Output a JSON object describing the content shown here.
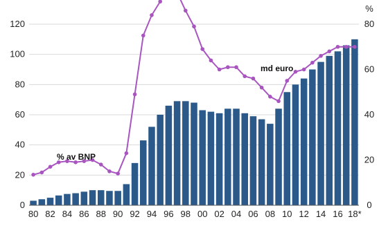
{
  "chart_data": {
    "type": "bar+line",
    "categories": [
      "80",
      "81",
      "82",
      "83",
      "84",
      "85",
      "86",
      "87",
      "88",
      "89",
      "90",
      "91",
      "92",
      "93",
      "94",
      "95",
      "96",
      "97",
      "98",
      "99",
      "00",
      "01",
      "02",
      "03",
      "04",
      "05",
      "06",
      "07",
      "08",
      "09",
      "10",
      "11",
      "12",
      "13",
      "14",
      "15",
      "16",
      "17",
      "18*"
    ],
    "x_tick_labels": [
      "80",
      "82",
      "84",
      "86",
      "88",
      "90",
      "92",
      "94",
      "96",
      "98",
      "00",
      "02",
      "04",
      "06",
      "08",
      "10",
      "12",
      "14",
      "16",
      "18*"
    ],
    "series": [
      {
        "name": "md euro",
        "kind": "bar",
        "axis": "left",
        "color": "#2b5a8a",
        "values": [
          3,
          4,
          5,
          6.5,
          7.5,
          8,
          9,
          10,
          10,
          9.5,
          9.5,
          14,
          28,
          43,
          52,
          60,
          66,
          69,
          69,
          68,
          63,
          62,
          61,
          64,
          64,
          61,
          59,
          57,
          54,
          64,
          75,
          80,
          84,
          90,
          95,
          99,
          102,
          106,
          110
        ]
      },
      {
        "name": "% av BNP",
        "kind": "line",
        "axis": "right",
        "color": "#a855c0",
        "values": [
          13.5,
          14.5,
          17,
          19,
          19.5,
          19,
          19.5,
          20,
          18,
          15,
          14,
          23,
          49,
          75,
          84,
          90,
          97,
          94,
          86,
          79,
          69,
          64,
          60,
          61,
          61,
          57,
          56,
          52,
          48,
          46,
          55,
          59,
          60,
          63,
          66,
          68,
          70,
          70,
          70
        ]
      }
    ],
    "y_left": {
      "min": 0,
      "max": 120,
      "ticks": [
        0,
        20,
        40,
        60,
        80,
        100,
        120
      ]
    },
    "y_right": {
      "unit": "%",
      "min": 0,
      "max": 80,
      "ticks": [
        0,
        20,
        40,
        60,
        80
      ]
    },
    "annotations": {
      "bars_label": "md euro",
      "line_label": "% av BNP"
    },
    "grid": "horizontal",
    "legend": "none"
  }
}
